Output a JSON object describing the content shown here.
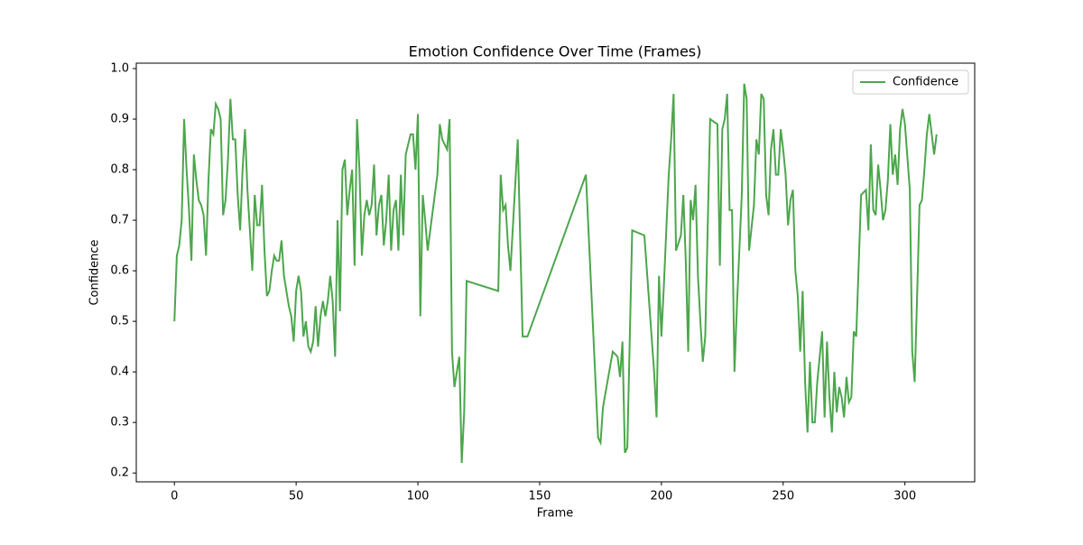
{
  "chart_data": {
    "type": "line",
    "title": "Emotion Confidence Over Time (Frames)",
    "x_label": "Frame",
    "y_label": "Confidence",
    "x": [
      0,
      1,
      2,
      3,
      4,
      5,
      6,
      7,
      8,
      9,
      10,
      11,
      12,
      13,
      14,
      15,
      16,
      17,
      18,
      19,
      20,
      21,
      22,
      23,
      24,
      25,
      26,
      27,
      28,
      29,
      30,
      31,
      32,
      33,
      34,
      35,
      36,
      37,
      38,
      39,
      40,
      41,
      42,
      43,
      44,
      45,
      46,
      47,
      48,
      49,
      50,
      51,
      52,
      53,
      54,
      55,
      56,
      57,
      58,
      59,
      60,
      61,
      62,
      63,
      64,
      65,
      66,
      67,
      68,
      69,
      70,
      71,
      72,
      73,
      74,
      75,
      76,
      77,
      78,
      79,
      80,
      81,
      82,
      83,
      84,
      85,
      86,
      87,
      88,
      89,
      90,
      91,
      92,
      93,
      94,
      95,
      96,
      97,
      98,
      99,
      100,
      101,
      102,
      103,
      104,
      108,
      109,
      110,
      111,
      112,
      113,
      114,
      115,
      116,
      117,
      118,
      119,
      120,
      133,
      134,
      135,
      136,
      137,
      138,
      141,
      143,
      145,
      169,
      174,
      175,
      176,
      180,
      182,
      183,
      184,
      185,
      186,
      188,
      193,
      197,
      198,
      199,
      200,
      201,
      203,
      204,
      205,
      206,
      208,
      209,
      210,
      211,
      212,
      213,
      214,
      215,
      216,
      217,
      218,
      220,
      223,
      224,
      225,
      226,
      227,
      228,
      229,
      230,
      231,
      233,
      234,
      235,
      236,
      238,
      239,
      240,
      241,
      242,
      243,
      244,
      245,
      246,
      247,
      248,
      249,
      250,
      251,
      252,
      253,
      254,
      255,
      256,
      257,
      258,
      259,
      260,
      261,
      262,
      263,
      264,
      266,
      267,
      268,
      269,
      270,
      271,
      272,
      273,
      274,
      275,
      276,
      277,
      278,
      279,
      280,
      282,
      284,
      285,
      286,
      287,
      288,
      289,
      290,
      291,
      292,
      293,
      294,
      295,
      296,
      297,
      298,
      299,
      300,
      302,
      303,
      304,
      305,
      306,
      307,
      308,
      309,
      310,
      312,
      313
    ],
    "series": [
      {
        "name": "Confidence",
        "color": "#4ca64c",
        "values": [
          0.5,
          0.63,
          0.65,
          0.7,
          0.9,
          0.8,
          0.72,
          0.62,
          0.83,
          0.78,
          0.74,
          0.73,
          0.71,
          0.63,
          0.78,
          0.88,
          0.87,
          0.93,
          0.92,
          0.9,
          0.71,
          0.74,
          0.82,
          0.94,
          0.86,
          0.86,
          0.75,
          0.68,
          0.8,
          0.88,
          0.76,
          0.68,
          0.6,
          0.75,
          0.69,
          0.69,
          0.77,
          0.64,
          0.55,
          0.56,
          0.6,
          0.63,
          0.62,
          0.62,
          0.66,
          0.59,
          0.56,
          0.53,
          0.51,
          0.46,
          0.56,
          0.59,
          0.56,
          0.47,
          0.5,
          0.45,
          0.44,
          0.46,
          0.53,
          0.45,
          0.51,
          0.54,
          0.51,
          0.54,
          0.59,
          0.54,
          0.43,
          0.7,
          0.52,
          0.8,
          0.82,
          0.71,
          0.76,
          0.8,
          0.61,
          0.9,
          0.8,
          0.63,
          0.71,
          0.74,
          0.71,
          0.73,
          0.81,
          0.67,
          0.73,
          0.75,
          0.65,
          0.7,
          0.79,
          0.64,
          0.72,
          0.74,
          0.64,
          0.79,
          0.67,
          0.83,
          0.85,
          0.87,
          0.87,
          0.8,
          0.91,
          0.51,
          0.75,
          0.7,
          0.64,
          0.79,
          0.89,
          0.86,
          0.85,
          0.84,
          0.9,
          0.44,
          0.37,
          0.4,
          0.43,
          0.22,
          0.32,
          0.58,
          0.56,
          0.79,
          0.72,
          0.73,
          0.65,
          0.6,
          0.86,
          0.47,
          0.47,
          0.79,
          0.27,
          0.26,
          0.33,
          0.44,
          0.43,
          0.39,
          0.46,
          0.24,
          0.25,
          0.68,
          0.67,
          0.4,
          0.31,
          0.59,
          0.47,
          0.57,
          0.79,
          0.86,
          0.95,
          0.64,
          0.67,
          0.75,
          0.62,
          0.44,
          0.74,
          0.7,
          0.77,
          0.59,
          0.5,
          0.42,
          0.47,
          0.9,
          0.89,
          0.61,
          0.88,
          0.9,
          0.95,
          0.72,
          0.72,
          0.4,
          0.53,
          0.75,
          0.97,
          0.94,
          0.64,
          0.73,
          0.86,
          0.83,
          0.95,
          0.94,
          0.75,
          0.71,
          0.84,
          0.88,
          0.79,
          0.79,
          0.88,
          0.84,
          0.79,
          0.69,
          0.74,
          0.76,
          0.6,
          0.55,
          0.44,
          0.56,
          0.38,
          0.28,
          0.42,
          0.3,
          0.3,
          0.38,
          0.48,
          0.31,
          0.46,
          0.35,
          0.28,
          0.4,
          0.32,
          0.37,
          0.35,
          0.31,
          0.39,
          0.34,
          0.35,
          0.48,
          0.47,
          0.75,
          0.76,
          0.68,
          0.85,
          0.72,
          0.71,
          0.81,
          0.76,
          0.7,
          0.72,
          0.78,
          0.89,
          0.79,
          0.83,
          0.77,
          0.88,
          0.92,
          0.89,
          0.76,
          0.44,
          0.38,
          0.55,
          0.73,
          0.74,
          0.8,
          0.87,
          0.91,
          0.83,
          0.87
        ]
      }
    ],
    "xlim": [
      -15.65,
      328.65
    ],
    "ylim": [
      0.1825,
      1.0107
    ],
    "xticks": [
      0,
      50,
      100,
      150,
      200,
      250,
      300
    ],
    "yticks": [
      0.2,
      0.3,
      0.4,
      0.5,
      0.6,
      0.7,
      0.8,
      0.9,
      {
        "value": 1,
        "label": "1.0"
      }
    ],
    "legend": "upper right"
  }
}
